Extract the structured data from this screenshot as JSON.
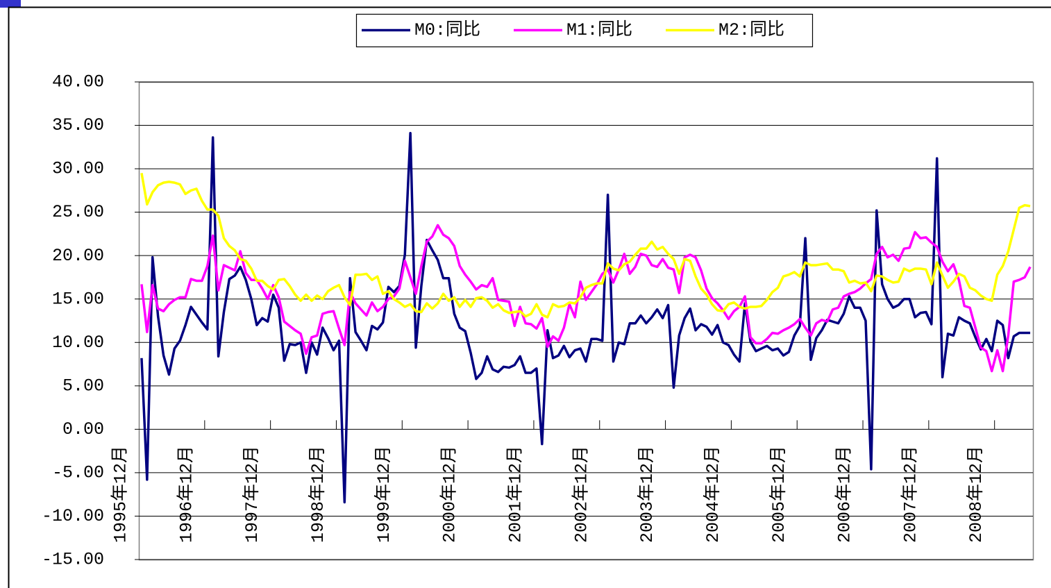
{
  "chart_data": {
    "type": "line",
    "categories": [
      "1995年12月",
      null,
      null,
      null,
      null,
      null,
      null,
      null,
      null,
      null,
      null,
      null,
      "1996年12月",
      null,
      null,
      null,
      null,
      null,
      null,
      null,
      null,
      null,
      null,
      null,
      "1997年12月",
      null,
      null,
      null,
      null,
      null,
      null,
      null,
      null,
      null,
      null,
      null,
      "1998年12月",
      null,
      null,
      null,
      null,
      null,
      null,
      null,
      null,
      null,
      null,
      null,
      "1999年12月",
      null,
      null,
      null,
      null,
      null,
      null,
      null,
      null,
      null,
      null,
      null,
      "2000年12月",
      null,
      null,
      null,
      null,
      null,
      null,
      null,
      null,
      null,
      null,
      null,
      "2001年12月",
      null,
      null,
      null,
      null,
      null,
      null,
      null,
      null,
      null,
      null,
      null,
      "2002年12月",
      null,
      null,
      null,
      null,
      null,
      null,
      null,
      null,
      null,
      null,
      null,
      "2003年12月",
      null,
      null,
      null,
      null,
      null,
      null,
      null,
      null,
      null,
      null,
      null,
      "2004年12月",
      null,
      null,
      null,
      null,
      null,
      null,
      null,
      null,
      null,
      null,
      null,
      "2005年12月",
      null,
      null,
      null,
      null,
      null,
      null,
      null,
      null,
      null,
      null,
      null,
      "2006年12月",
      null,
      null,
      null,
      null,
      null,
      null,
      null,
      null,
      null,
      null,
      null,
      "2007年12月",
      null,
      null,
      null,
      null,
      null,
      null,
      null,
      null,
      null,
      null,
      null,
      "2008年12月",
      null,
      null,
      null,
      null,
      null,
      null
    ],
    "series": [
      {
        "name": "M0:同比",
        "color": "#000080",
        "values": [
          8.2,
          -5.8,
          19.8,
          13,
          8.5,
          6.3,
          9.3,
          10.2,
          12,
          14.1,
          13.2,
          12.3,
          11.5,
          33.6,
          8.4,
          13.5,
          17.3,
          17.7,
          18.7,
          17.2,
          15,
          12,
          12.8,
          12.4,
          15.5,
          14,
          7.9,
          9.8,
          9.7,
          10,
          6.5,
          10,
          8.6,
          11.7,
          10.5,
          9.1,
          10.2,
          -8.4,
          17.4,
          11.2,
          10.2,
          9.1,
          11.9,
          11.5,
          12.3,
          16.4,
          15.8,
          16.5,
          20.1,
          34.1,
          9.4,
          16.5,
          21.8,
          20.6,
          19.5,
          17.4,
          17.4,
          13.3,
          11.7,
          11.3,
          8.8,
          5.8,
          6.5,
          8.4,
          6.9,
          6.6,
          7.2,
          7.1,
          7.4,
          8.4,
          6.5,
          6.5,
          7,
          -1.7,
          11.4,
          8.2,
          8.5,
          9.6,
          8.3,
          9.1,
          9.3,
          7.8,
          10.4,
          10.4,
          10.2,
          27,
          7.8,
          10,
          9.8,
          12.2,
          12.2,
          13.1,
          12.2,
          12.9,
          13.8,
          12.8,
          14.3,
          4.8,
          10.8,
          12.8,
          13.9,
          11.4,
          12.1,
          11.8,
          10.9,
          12,
          10,
          9.7,
          8.6,
          7.8,
          14.5,
          10.1,
          9,
          9.3,
          9.6,
          9.1,
          9.3,
          8.5,
          8.9,
          10.8,
          11.9,
          22,
          8,
          10.5,
          11.4,
          12.6,
          12.4,
          12.2,
          13.3,
          15.3,
          14,
          14,
          12.5,
          -4.6,
          25.2,
          16.7,
          15,
          14,
          14.3,
          15,
          15,
          12.9,
          13.4,
          13.5,
          12.1,
          31.2,
          6,
          11,
          10.8,
          12.9,
          12.5,
          12.2,
          10.6,
          9.2,
          10.4,
          9,
          12.5,
          12,
          8.2,
          10.7,
          11.1,
          11.1,
          11.1
        ]
      },
      {
        "name": "M1:同比",
        "color": "#ff00ff",
        "values": [
          16.7,
          11.2,
          16.6,
          13.9,
          13.6,
          14.4,
          14.9,
          15.2,
          15.2,
          17.3,
          17.1,
          17.1,
          18.8,
          22.3,
          16,
          18.9,
          18.6,
          18.3,
          20.5,
          18,
          17.2,
          17.2,
          16.2,
          15,
          16.6,
          15.2,
          12.4,
          11.9,
          11.4,
          11,
          8.7,
          10.6,
          10.8,
          13.3,
          13.5,
          13.6,
          11.6,
          9.7,
          15.8,
          14.5,
          13.8,
          13.1,
          14.6,
          13.6,
          14.1,
          15,
          15.3,
          16.2,
          19.4,
          17.5,
          15.6,
          18.8,
          21.6,
          22.2,
          23.5,
          22.4,
          22,
          21.1,
          18.8,
          17.8,
          17,
          16.1,
          16.6,
          16.4,
          17.4,
          14.9,
          14.8,
          14.7,
          11.9,
          14.1,
          12.2,
          12.1,
          11.6,
          12.8,
          9.5,
          10.7,
          10.2,
          11.7,
          14.4,
          12.9,
          17,
          14.9,
          15.8,
          16.7,
          17.9,
          18.4,
          16.9,
          18.4,
          20.2,
          17.9,
          18.7,
          20.2,
          20,
          18.9,
          18.7,
          19.6,
          18.6,
          18.4,
          15.7,
          19.8,
          20.1,
          19.8,
          18.3,
          16.2,
          15.1,
          14.5,
          13.7,
          12.7,
          13.6,
          14.1,
          15.3,
          10.6,
          9.9,
          9.9,
          10.4,
          11.1,
          11,
          11.4,
          11.7,
          12.1,
          12.7,
          11.7,
          10.8,
          12.2,
          12.6,
          12.4,
          13.8,
          14,
          15.3,
          15.6,
          15.8,
          16.2,
          16.8,
          17.3,
          20.2,
          21,
          19.8,
          20.1,
          19.4,
          20.8,
          20.9,
          22.7,
          22,
          22.1,
          21.5,
          21,
          19.3,
          18.2,
          19,
          17.2,
          14.2,
          14,
          11.7,
          9.4,
          9,
          6.7,
          9.1,
          6.7,
          10.8,
          17,
          17.2,
          17.5,
          18.7
        ]
      },
      {
        "name": "M2:同比",
        "color": "#ffff00",
        "values": [
          29.5,
          25.9,
          27.3,
          28.1,
          28.4,
          28.5,
          28.4,
          28.2,
          27.1,
          27.5,
          27.7,
          26.3,
          25.3,
          25.3,
          24.6,
          22,
          21.1,
          20.6,
          19.6,
          19.4,
          18.5,
          17.1,
          17.1,
          16.5,
          16.1,
          17.2,
          17.3,
          16.5,
          15.5,
          14.8,
          15.5,
          14.8,
          15.4,
          15,
          15.9,
          16.3,
          16.6,
          15.2,
          14.3,
          17.8,
          17.8,
          17.9,
          17.2,
          17.6,
          15.6,
          15.9,
          15,
          14.6,
          14.1,
          14.4,
          13.6,
          13.5,
          14.5,
          13.9,
          14.5,
          15.6,
          14.8,
          15.2,
          14.1,
          14.9,
          14.1,
          15.1,
          15.2,
          14.8,
          14,
          14.4,
          13.7,
          13.4,
          13.5,
          13.6,
          13,
          13.3,
          14.4,
          13.2,
          12.9,
          14.4,
          14.1,
          14.2,
          14.6,
          14.5,
          15.2,
          16.3,
          16.6,
          16.8,
          16.8,
          19.1,
          18.5,
          18.3,
          19,
          19.3,
          20.1,
          20.8,
          20.8,
          21.6,
          20.7,
          21,
          20.2,
          19.6,
          17.9,
          19.6,
          19.4,
          17.6,
          16.2,
          15.5,
          14.4,
          13.7,
          13.6,
          14.4,
          14.6,
          14.1,
          13.9,
          14.1,
          14.1,
          14.2,
          14.9,
          15.8,
          16.3,
          17.6,
          17.8,
          18.1,
          17.6,
          19.2,
          18.9,
          18.9,
          19,
          19.1,
          18.4,
          18.4,
          18.2,
          16.9,
          17.1,
          16.8,
          16.9,
          15.9,
          17.7,
          17.6,
          17.2,
          16.9,
          17,
          18.5,
          18.2,
          18.5,
          18.5,
          18.4,
          16.7,
          19.2,
          17.7,
          16.3,
          17,
          17.9,
          17.6,
          16.3,
          16,
          15.4,
          15,
          14.8,
          17.8,
          18.8,
          20.5,
          23,
          25.5,
          25.8,
          25.7
        ]
      }
    ],
    "ylim": [
      -15,
      40
    ],
    "yticks": [
      {
        "value": -15,
        "label": "-15.00"
      },
      {
        "value": -10,
        "label": "-10.00"
      },
      {
        "value": -5,
        "label": "-5.00"
      },
      {
        "value": 0,
        "label": "0.00"
      },
      {
        "value": 5,
        "label": "5.00"
      },
      {
        "value": 10,
        "label": "10.00"
      },
      {
        "value": 15,
        "label": "15.00"
      },
      {
        "value": 20,
        "label": "20.00"
      },
      {
        "value": 25,
        "label": "25.00"
      },
      {
        "value": 30,
        "label": "30.00"
      },
      {
        "value": 35,
        "label": "35.00"
      },
      {
        "value": 40,
        "label": "40.00"
      }
    ],
    "grid": true,
    "legend": "top"
  }
}
